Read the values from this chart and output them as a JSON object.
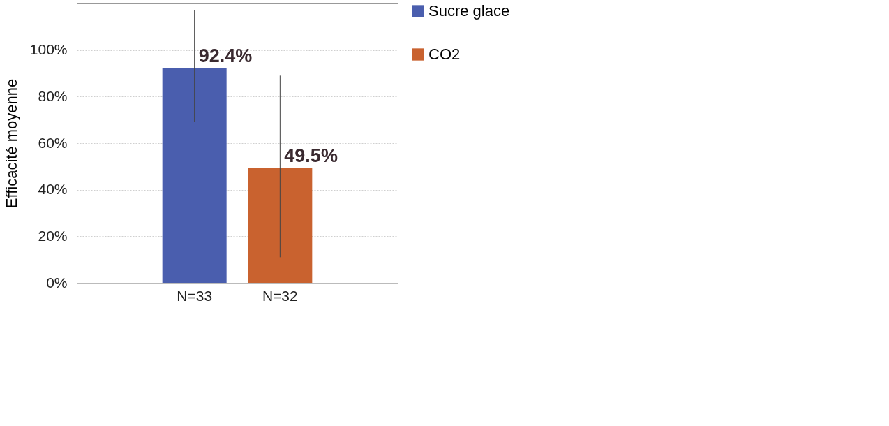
{
  "chart_data": {
    "type": "bar",
    "ylabel": "Efficacité moyenne",
    "categories": [
      "N=33",
      "N=32"
    ],
    "series": [
      {
        "name": "Sucre glace",
        "color": "#4a5eae",
        "values": [
          92.4,
          null
        ],
        "errors": [
          [
            69,
            117
          ],
          null
        ],
        "value_labels": [
          "92.4%",
          null
        ]
      },
      {
        "name": "CO2",
        "color": "#c9622f",
        "values": [
          null,
          49.5
        ],
        "errors": [
          null,
          [
            11,
            89
          ]
        ],
        "value_labels": [
          null,
          "49.5%"
        ]
      }
    ],
    "ylim": [
      0,
      120
    ],
    "yticks": [
      {
        "value": 0,
        "label": "0%"
      },
      {
        "value": 20,
        "label": "20%"
      },
      {
        "value": 40,
        "label": "40%"
      },
      {
        "value": 60,
        "label": "60%"
      },
      {
        "value": 80,
        "label": "80%"
      },
      {
        "value": 100,
        "label": "100%"
      }
    ],
    "grid": "y",
    "legend": "right"
  }
}
